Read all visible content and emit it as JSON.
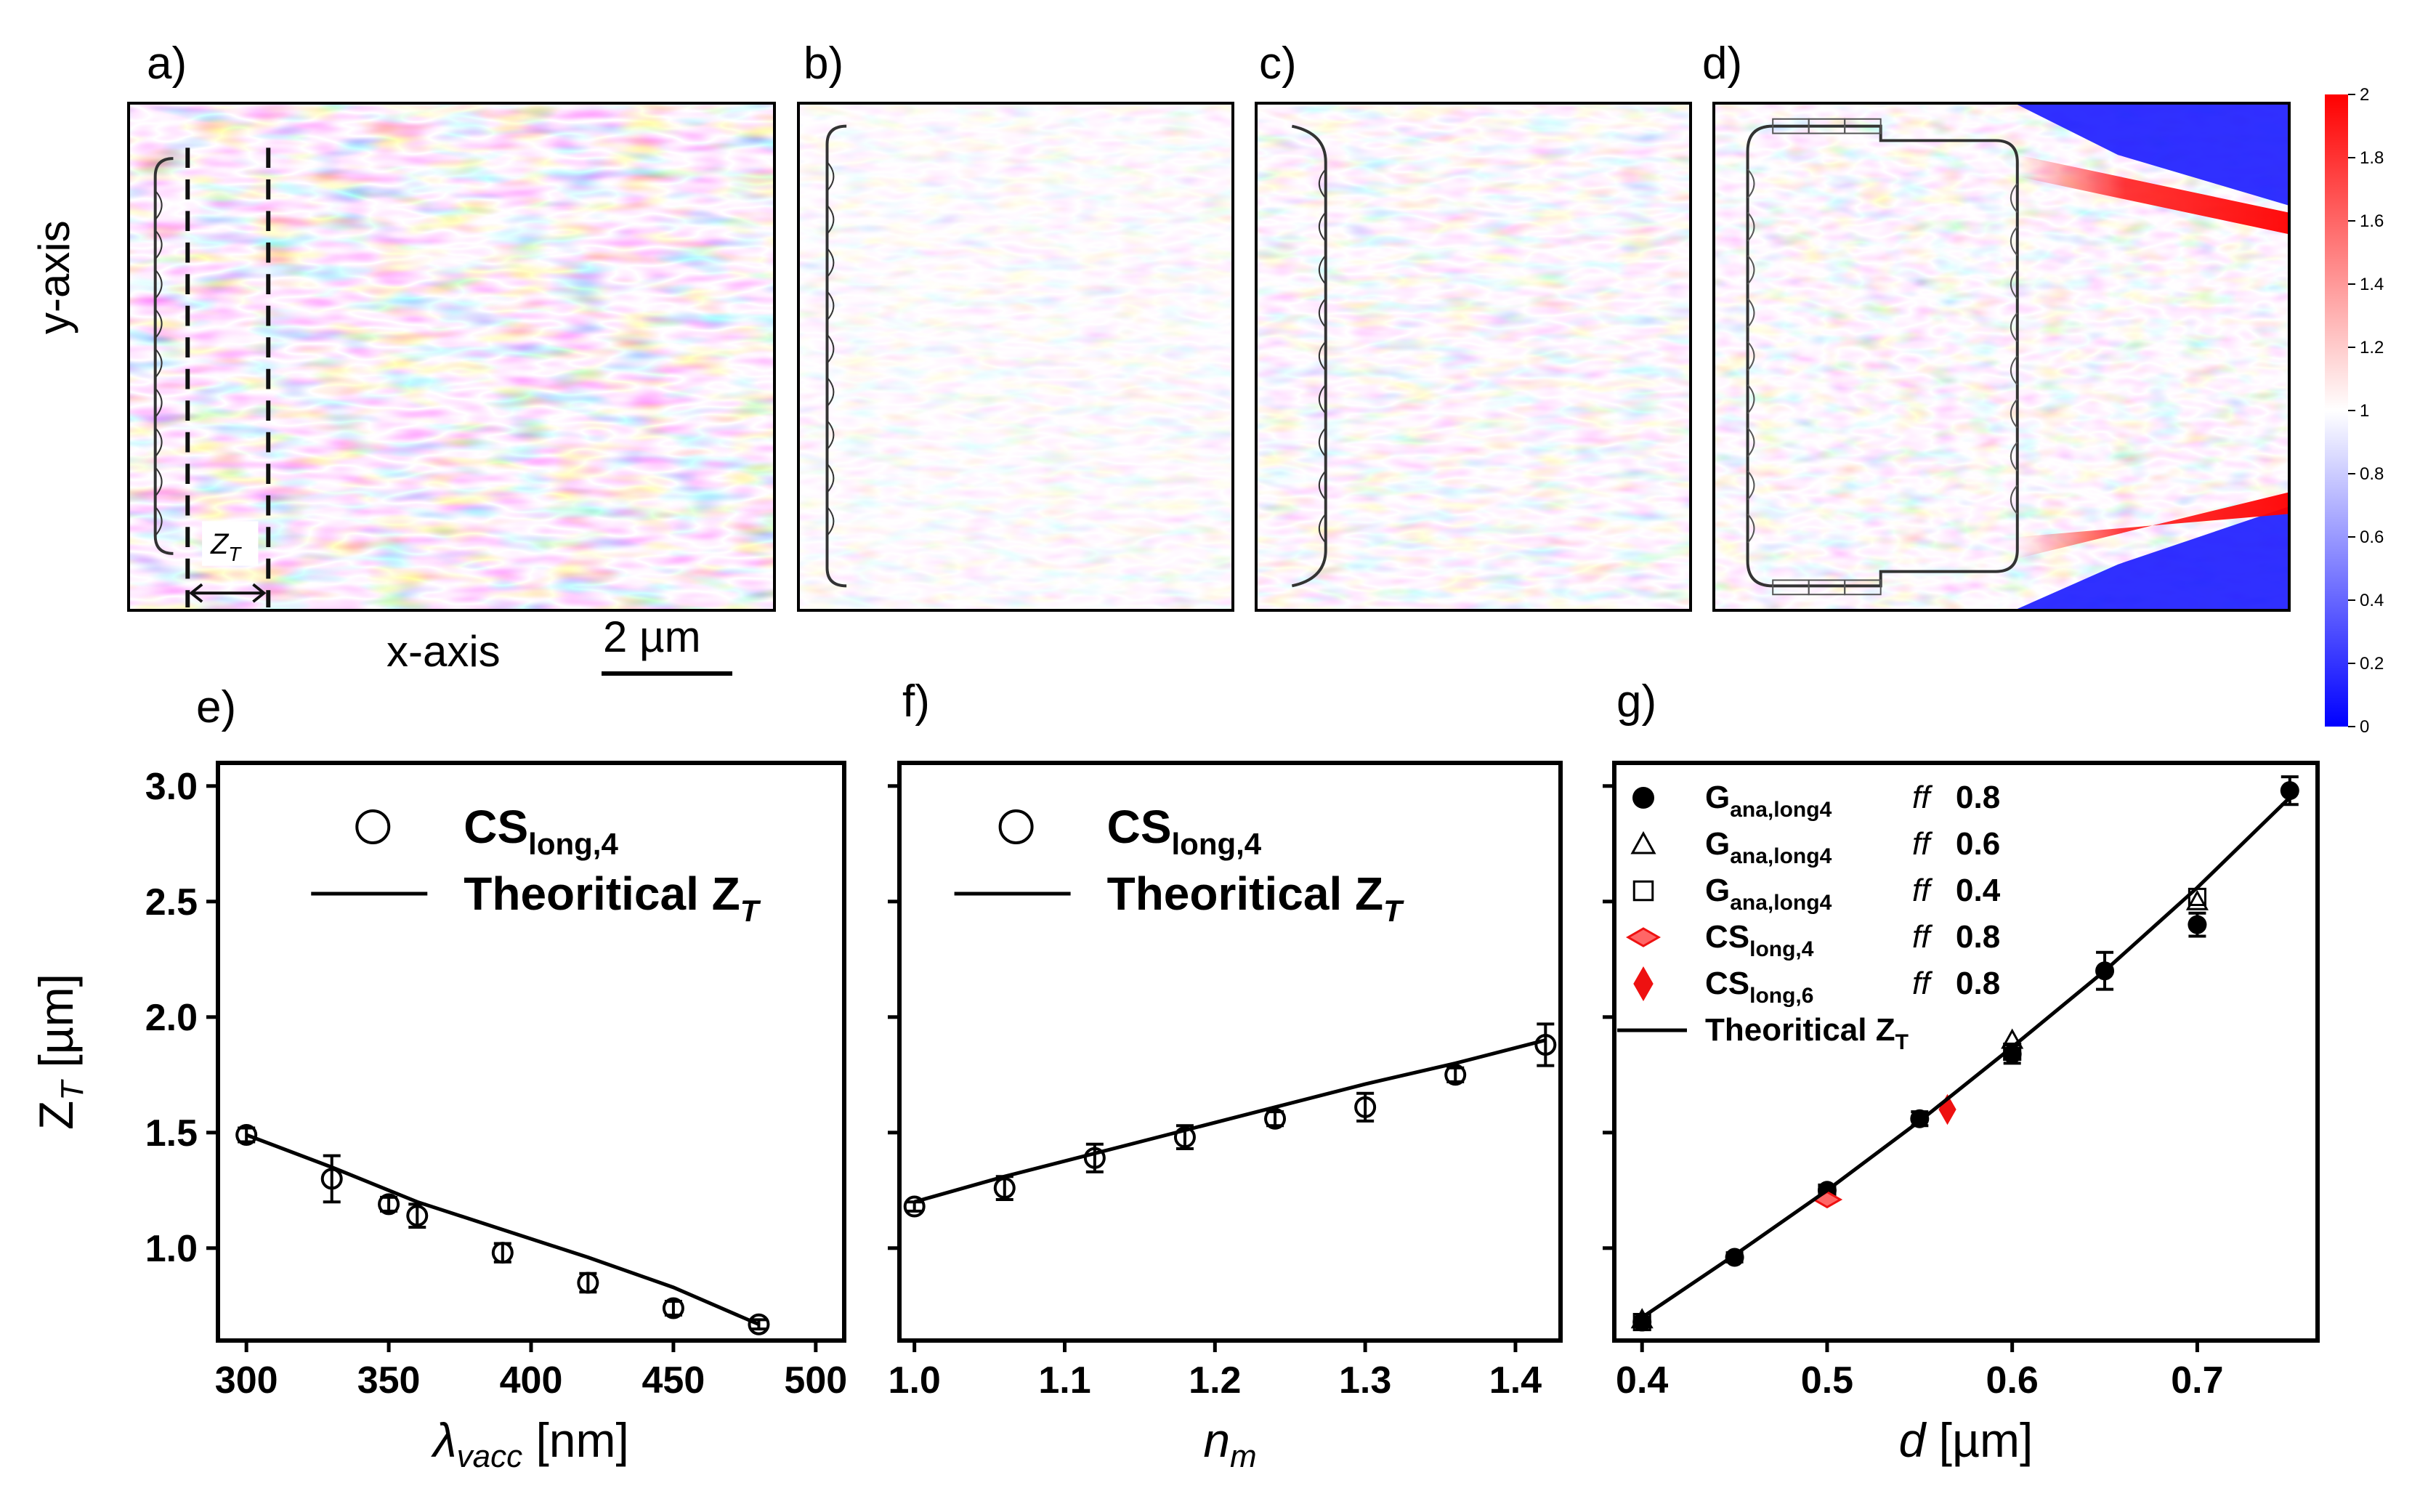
{
  "panels": {
    "a": "a)",
    "b": "b)",
    "c": "c)",
    "d": "d)",
    "e": "e)",
    "f": "f)",
    "g": "g)"
  },
  "field_maps": {
    "y_axis_label": "y-axis",
    "x_axis_label": "x-axis",
    "scale_bar_label": "2 µm",
    "zt_label": "Z",
    "zt_sub": "T"
  },
  "colorbar": {
    "ticks": [
      "0",
      "0.2",
      "0.4",
      "0.6",
      "0.8",
      "1",
      "1.2",
      "1.4",
      "1.6",
      "1.8",
      "2"
    ],
    "colors": {
      "low": "#0000ff",
      "mid": "#ffffff",
      "high": "#ff0000"
    }
  },
  "chart_data": [
    {
      "id": "e",
      "type": "scatter",
      "title": "",
      "xlabel": "λvacc [nm]",
      "xlabel_parts": [
        "λ",
        "vacc",
        " [nm]"
      ],
      "ylabel": "ZT [µm]",
      "ylabel_parts": [
        "Z",
        "T",
        " [µm]"
      ],
      "xlim": [
        290,
        510
      ],
      "ylim": [
        0.6,
        3.1
      ],
      "xticks": [
        300,
        350,
        400,
        450,
        500
      ],
      "xtick_labels": [
        "300",
        "350",
        "400",
        "450",
        "500"
      ],
      "yticks": [
        1.0,
        1.5,
        2.0,
        2.5,
        3.0
      ],
      "ytick_labels": [
        "1.0",
        "1.5",
        "2.0",
        "2.5",
        "3.0"
      ],
      "legend": {
        "position": "top-right",
        "entries": [
          {
            "marker": "circle-open",
            "label": "CS",
            "sub": "long,4"
          },
          {
            "marker": "line",
            "label": "Theoritical Z",
            "sub": "T"
          }
        ]
      },
      "series": [
        {
          "name": "CSlong,4",
          "marker": "circle-open",
          "x": [
            300,
            330,
            350,
            360,
            390,
            420,
            450,
            480
          ],
          "y": [
            1.49,
            1.3,
            1.19,
            1.14,
            0.98,
            0.85,
            0.74,
            0.67
          ],
          "err": [
            0.03,
            0.1,
            0.03,
            0.05,
            0.04,
            0.04,
            0.03,
            0.02
          ]
        },
        {
          "name": "Theoritical ZT",
          "marker": "line",
          "x": [
            300,
            330,
            350,
            360,
            390,
            420,
            450,
            480
          ],
          "y": [
            1.49,
            1.35,
            1.25,
            1.2,
            1.08,
            0.96,
            0.83,
            0.67
          ]
        }
      ]
    },
    {
      "id": "f",
      "type": "scatter",
      "title": "",
      "xlabel": "nm",
      "xlabel_parts": [
        "n",
        "m",
        ""
      ],
      "ylabel": "",
      "xlim": [
        0.99,
        1.43
      ],
      "ylim": [
        0.6,
        3.1
      ],
      "xticks": [
        1.0,
        1.1,
        1.2,
        1.3,
        1.4
      ],
      "xtick_labels": [
        "1.0",
        "1.1",
        "1.2",
        "1.3",
        "1.4"
      ],
      "yticks": [
        1.0,
        1.5,
        2.0,
        2.5,
        3.0
      ],
      "ytick_labels": [],
      "legend": {
        "position": "top-right",
        "entries": [
          {
            "marker": "circle-open",
            "label": "CS",
            "sub": "long,4"
          },
          {
            "marker": "line",
            "label": "Theoritical Z",
            "sub": "T"
          }
        ]
      },
      "series": [
        {
          "name": "CSlong,4",
          "marker": "circle-open",
          "x": [
            1.0,
            1.06,
            1.12,
            1.18,
            1.24,
            1.3,
            1.36,
            1.42
          ],
          "y": [
            1.18,
            1.26,
            1.39,
            1.48,
            1.56,
            1.61,
            1.75,
            1.88
          ],
          "err": [
            0.02,
            0.05,
            0.06,
            0.05,
            0.03,
            0.06,
            0.03,
            0.09
          ]
        },
        {
          "name": "Theoritical ZT",
          "marker": "line",
          "x": [
            1.0,
            1.06,
            1.12,
            1.18,
            1.24,
            1.3,
            1.36,
            1.42
          ],
          "y": [
            1.2,
            1.31,
            1.41,
            1.51,
            1.61,
            1.71,
            1.8,
            1.9
          ]
        }
      ]
    },
    {
      "id": "g",
      "type": "scatter",
      "title": "",
      "xlabel": "d [µm]",
      "xlabel_parts": [
        "d",
        "",
        " [µm]"
      ],
      "ylabel": "",
      "xlim": [
        0.385,
        0.765
      ],
      "ylim": [
        0.6,
        3.1
      ],
      "xticks": [
        0.4,
        0.5,
        0.6,
        0.7
      ],
      "xtick_labels": [
        "0.4",
        "0.5",
        "0.6",
        "0.7"
      ],
      "yticks": [
        1.0,
        1.5,
        2.0,
        2.5,
        3.0
      ],
      "ytick_labels": [],
      "legend": {
        "position": "top-left",
        "entries": [
          {
            "marker": "circle-filled",
            "label": "G",
            "sub": "ana,long4",
            "ff": "ff",
            "ffval": "0.8"
          },
          {
            "marker": "triangle-open",
            "label": "G",
            "sub": "ana,long4",
            "ff": "ff",
            "ffval": "0.6"
          },
          {
            "marker": "square-open",
            "label": "G",
            "sub": "ana,long4",
            "ff": "ff",
            "ffval": "0.4"
          },
          {
            "marker": "red-diamond-h",
            "label": "CS",
            "sub": "long,4",
            "ff": "ff",
            "ffval": "0.8"
          },
          {
            "marker": "red-diamond-v",
            "label": "CS",
            "sub": "long,6",
            "ff": "ff",
            "ffval": "0.8"
          },
          {
            "marker": "line",
            "label": "Theoritical Z",
            "sub": "T",
            "ff": "",
            "ffval": ""
          }
        ]
      },
      "series": [
        {
          "name": "Gana,long4 ff 0.8",
          "marker": "circle-filled",
          "x": [
            0.4,
            0.45,
            0.5,
            0.55,
            0.6,
            0.65,
            0.7,
            0.75
          ],
          "y": [
            0.68,
            0.96,
            1.25,
            1.56,
            1.84,
            2.2,
            2.4,
            2.98
          ],
          "err": [
            0.02,
            0.02,
            0.02,
            0.03,
            0.04,
            0.08,
            0.05,
            0.06
          ]
        },
        {
          "name": "Gana,long4 ff 0.6",
          "marker": "triangle-open",
          "x": [
            0.4,
            0.5,
            0.6,
            0.7
          ],
          "y": [
            0.69,
            1.24,
            1.9,
            2.5
          ],
          "err": [
            0,
            0,
            0,
            0
          ]
        },
        {
          "name": "Gana,long4 ff 0.4",
          "marker": "square-open",
          "x": [
            0.4,
            0.5,
            0.6,
            0.7
          ],
          "y": [
            0.68,
            1.24,
            1.85,
            2.52
          ],
          "err": [
            0,
            0,
            0,
            0
          ]
        },
        {
          "name": "CSlong,4 ff 0.8",
          "marker": "red-diamond-h",
          "x": [
            0.5
          ],
          "y": [
            1.21
          ],
          "err": [
            0
          ]
        },
        {
          "name": "CSlong,6 ff 0.8",
          "marker": "red-diamond-v",
          "x": [
            0.565
          ],
          "y": [
            1.6
          ],
          "err": [
            0
          ]
        },
        {
          "name": "Theoritical ZT",
          "marker": "line",
          "x": [
            0.4,
            0.45,
            0.5,
            0.55,
            0.6,
            0.65,
            0.7,
            0.75
          ],
          "y": [
            0.7,
            0.97,
            1.25,
            1.55,
            1.87,
            2.2,
            2.56,
            2.95
          ]
        }
      ]
    }
  ]
}
